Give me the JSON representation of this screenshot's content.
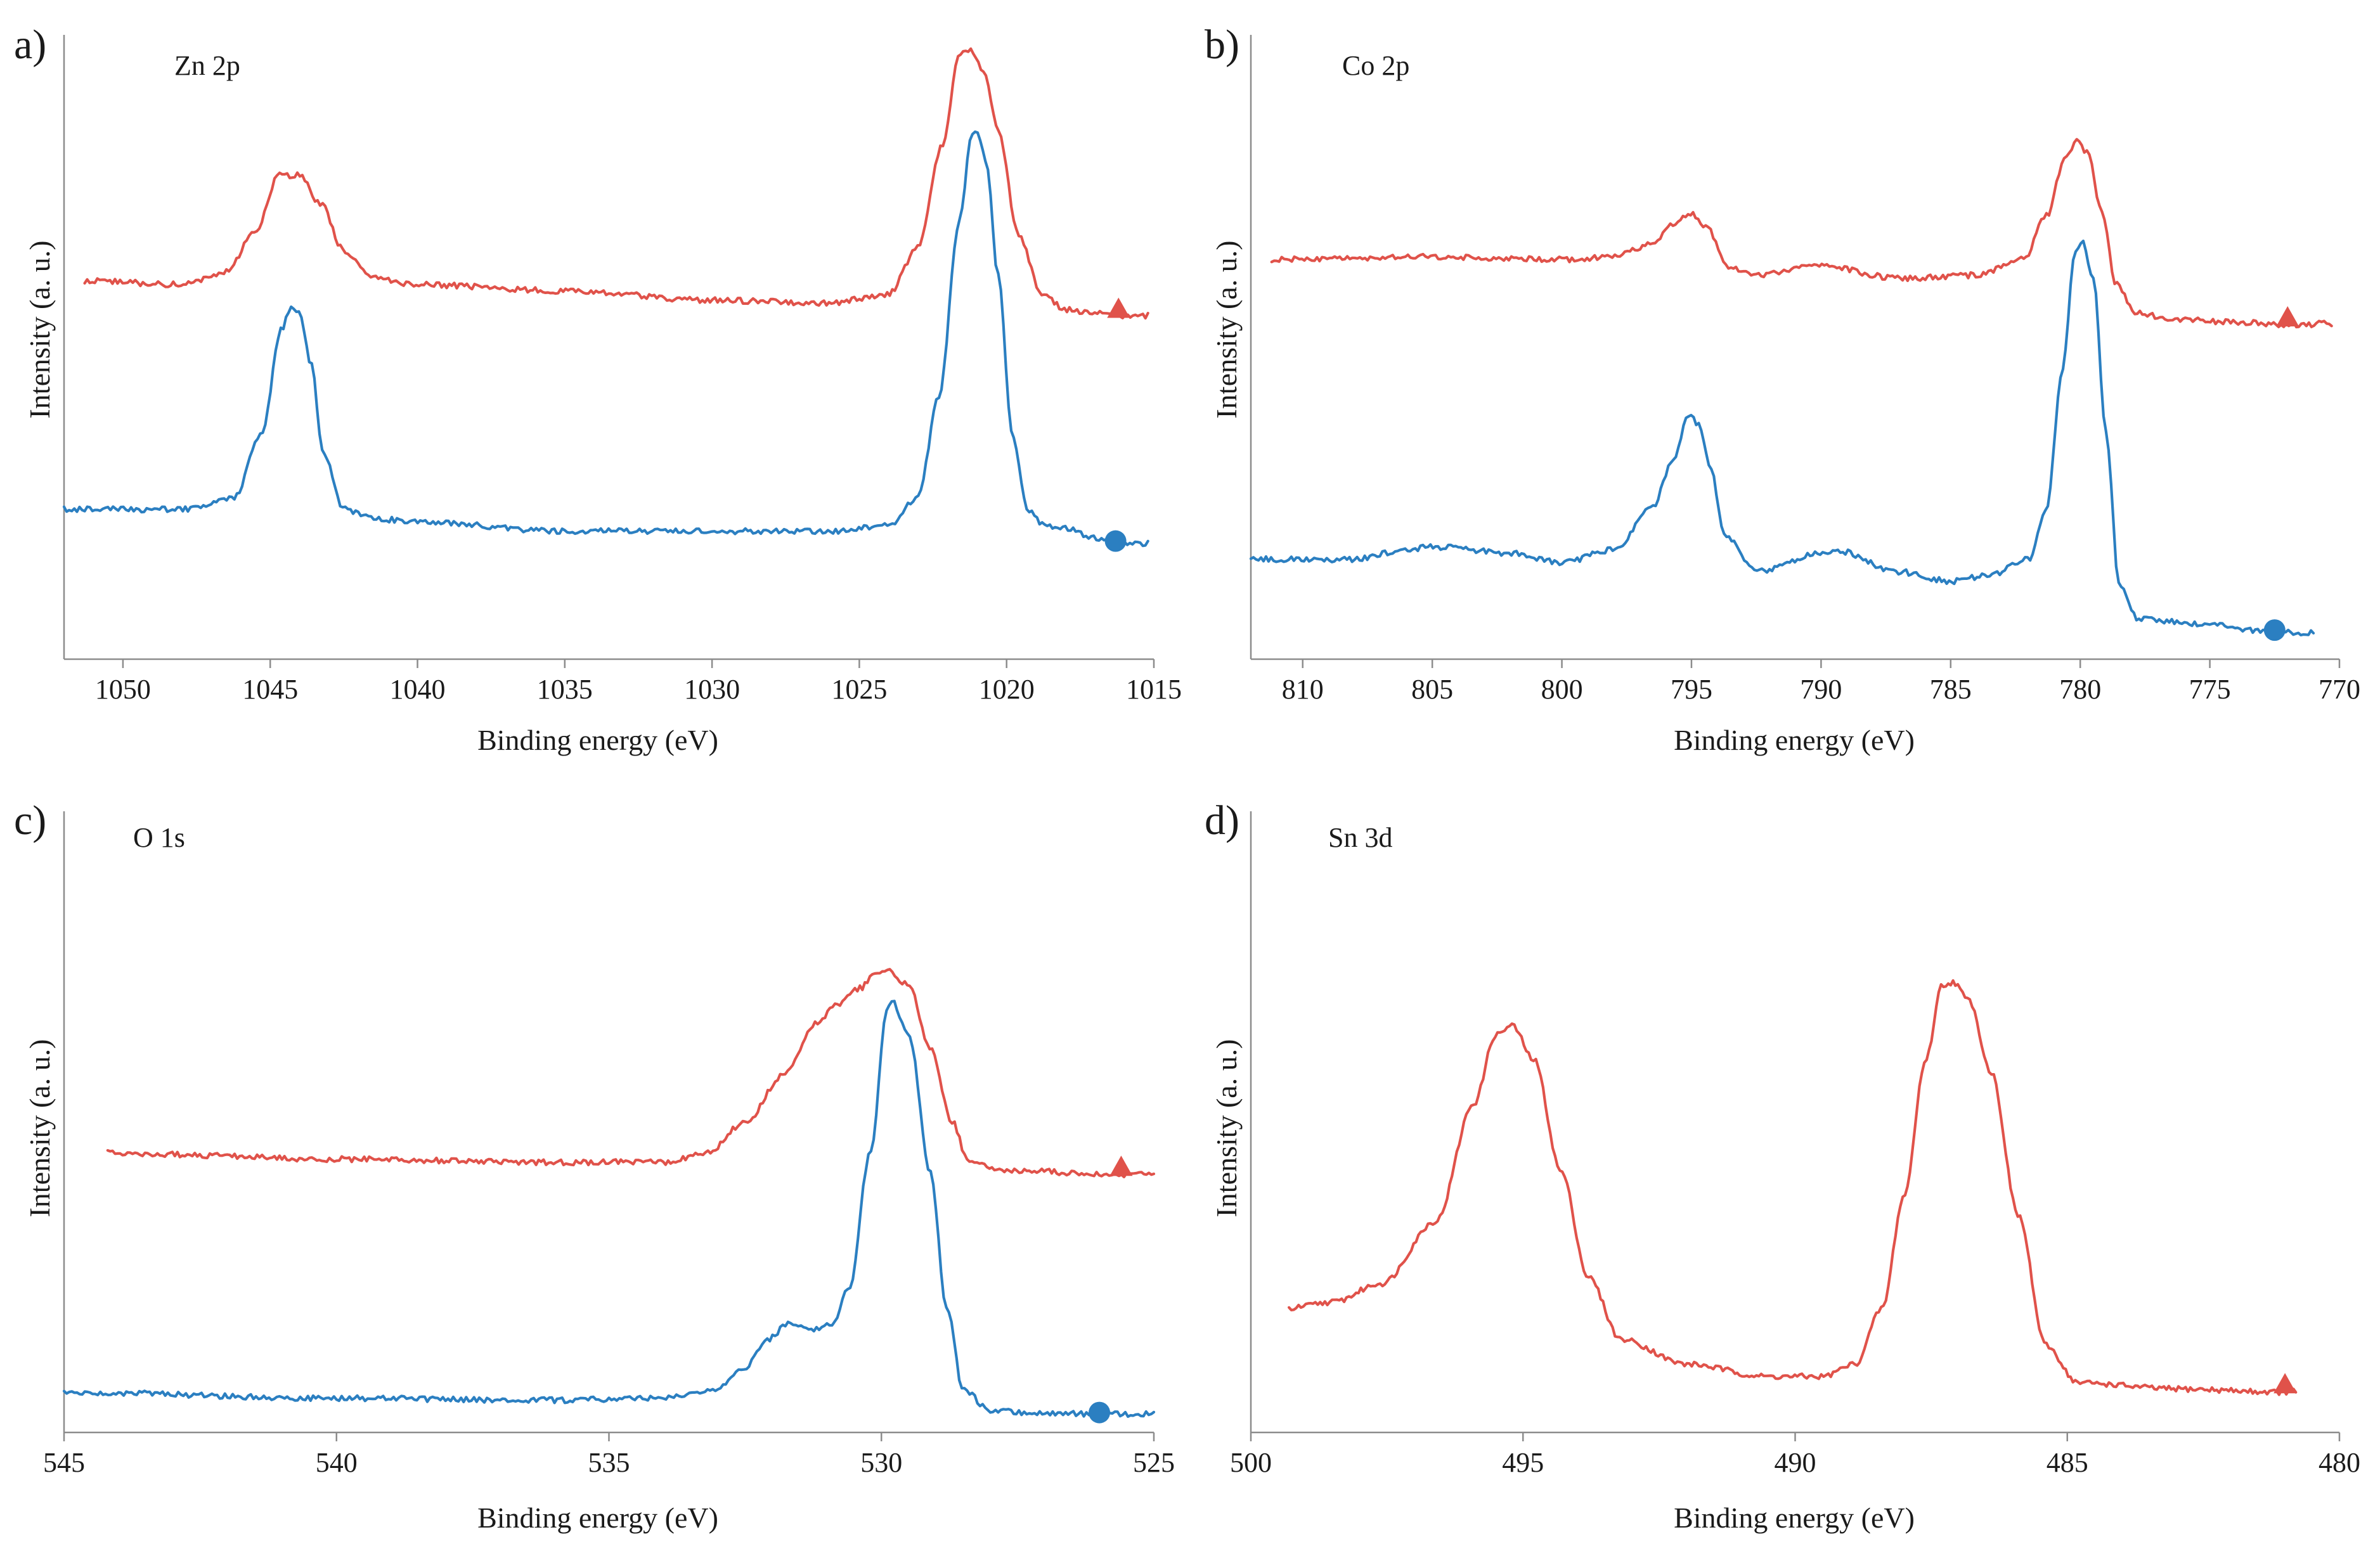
{
  "colors": {
    "red_series": "#e0524a",
    "blue_series": "#2b7fc1"
  },
  "chart_data": [
    {
      "type": "line",
      "panel": "a)",
      "title": "Zn 2p",
      "xlabel": "Binding energy (eV)",
      "ylabel": "Intensity (a. u.)",
      "xlim": [
        1052,
        1015
      ],
      "ylim": [
        0,
        1
      ],
      "xticks": [
        1050,
        1045,
        1040,
        1035,
        1030,
        1025,
        1020,
        1015
      ],
      "series": [
        {
          "name": "red-trace",
          "marker": "triangle",
          "color": "#e0524a",
          "x_range": [
            1051.3,
            1015.2
          ],
          "marker_x": 1016.2,
          "points": [
            [
              1051.3,
              0.606
            ],
            [
              1048,
              0.6
            ],
            [
              1046.5,
              0.62
            ],
            [
              1045.5,
              0.685
            ],
            [
              1044.7,
              0.775
            ],
            [
              1044,
              0.775
            ],
            [
              1043.3,
              0.73
            ],
            [
              1042.5,
              0.655
            ],
            [
              1041.5,
              0.61
            ],
            [
              1040,
              0.6
            ],
            [
              1035,
              0.59
            ],
            [
              1030,
              0.575
            ],
            [
              1026,
              0.57
            ],
            [
              1024,
              0.585
            ],
            [
              1023,
              0.66
            ],
            [
              1022.2,
              0.82
            ],
            [
              1021.6,
              0.97
            ],
            [
              1021.2,
              0.975
            ],
            [
              1020.8,
              0.945
            ],
            [
              1020.3,
              0.85
            ],
            [
              1019.6,
              0.68
            ],
            [
              1018.8,
              0.585
            ],
            [
              1018,
              0.56
            ],
            [
              1017,
              0.555
            ],
            [
              1016,
              0.548
            ],
            [
              1015.2,
              0.55
            ]
          ]
        },
        {
          "name": "blue-trace",
          "marker": "circle",
          "color": "#2b7fc1",
          "x_range": [
            1052,
            1015.2
          ],
          "marker_x": 1016.3,
          "points": [
            [
              1052,
              0.24
            ],
            [
              1048,
              0.24
            ],
            [
              1046.2,
              0.26
            ],
            [
              1045.3,
              0.36
            ],
            [
              1044.6,
              0.53
            ],
            [
              1044.3,
              0.565
            ],
            [
              1044,
              0.555
            ],
            [
              1043.6,
              0.47
            ],
            [
              1043.2,
              0.33
            ],
            [
              1042.5,
              0.24
            ],
            [
              1041.5,
              0.225
            ],
            [
              1040,
              0.22
            ],
            [
              1035,
              0.205
            ],
            [
              1030,
              0.205
            ],
            [
              1026,
              0.205
            ],
            [
              1024,
              0.215
            ],
            [
              1023,
              0.26
            ],
            [
              1022.3,
              0.42
            ],
            [
              1021.6,
              0.7
            ],
            [
              1021.2,
              0.84
            ],
            [
              1021,
              0.845
            ],
            [
              1020.7,
              0.8
            ],
            [
              1020.3,
              0.62
            ],
            [
              1019.8,
              0.36
            ],
            [
              1019.3,
              0.24
            ],
            [
              1018.7,
              0.215
            ],
            [
              1018,
              0.21
            ],
            [
              1017,
              0.195
            ],
            [
              1016,
              0.185
            ],
            [
              1015.2,
              0.186
            ]
          ]
        }
      ]
    },
    {
      "type": "line",
      "panel": "b)",
      "title": "Co 2p",
      "xlabel": "Binding energy (eV)",
      "ylabel": "Intensity (a. u.)",
      "xlim": [
        812,
        770
      ],
      "ylim": [
        0,
        1
      ],
      "xticks": [
        810,
        805,
        800,
        795,
        790,
        785,
        780,
        775,
        770
      ],
      "series": [
        {
          "name": "red-trace",
          "marker": "triangle",
          "color": "#e0524a",
          "x_range": [
            811.2,
            770.3
          ],
          "marker_x": 772,
          "points": [
            [
              811.2,
              0.64
            ],
            [
              805,
              0.645
            ],
            [
              800,
              0.64
            ],
            [
              798,
              0.645
            ],
            [
              796.5,
              0.665
            ],
            [
              795.6,
              0.7
            ],
            [
              795,
              0.715
            ],
            [
              794.4,
              0.69
            ],
            [
              793.6,
              0.63
            ],
            [
              792.5,
              0.615
            ],
            [
              790,
              0.63
            ],
            [
              787,
              0.61
            ],
            [
              784,
              0.615
            ],
            [
              782.2,
              0.64
            ],
            [
              781.3,
              0.71
            ],
            [
              780.6,
              0.8
            ],
            [
              780.1,
              0.83
            ],
            [
              779.7,
              0.81
            ],
            [
              779.2,
              0.72
            ],
            [
              778.6,
              0.6
            ],
            [
              777.9,
              0.555
            ],
            [
              776.5,
              0.545
            ],
            [
              774,
              0.54
            ],
            [
              772,
              0.535
            ],
            [
              770.3,
              0.538
            ]
          ]
        },
        {
          "name": "blue-trace",
          "marker": "circle",
          "color": "#2b7fc1",
          "x_range": [
            812,
            771
          ],
          "marker_x": 772.5,
          "points": [
            [
              812,
              0.16
            ],
            [
              808,
              0.16
            ],
            [
              806,
              0.175
            ],
            [
              805,
              0.18
            ],
            [
              802,
              0.17
            ],
            [
              800,
              0.155
            ],
            [
              798,
              0.175
            ],
            [
              796.5,
              0.245
            ],
            [
              795.7,
              0.32
            ],
            [
              795.1,
              0.39
            ],
            [
              794.7,
              0.375
            ],
            [
              794.3,
              0.31
            ],
            [
              793.7,
              0.2
            ],
            [
              792.5,
              0.14
            ],
            [
              790,
              0.17
            ],
            [
              789.5,
              0.175
            ],
            [
              787,
              0.14
            ],
            [
              785,
              0.125
            ],
            [
              783.5,
              0.135
            ],
            [
              782,
              0.16
            ],
            [
              781.3,
              0.24
            ],
            [
              780.7,
              0.46
            ],
            [
              780.2,
              0.655
            ],
            [
              779.9,
              0.67
            ],
            [
              779.5,
              0.61
            ],
            [
              779,
              0.36
            ],
            [
              778.5,
              0.12
            ],
            [
              777.8,
              0.065
            ],
            [
              775,
              0.055
            ],
            [
              773,
              0.045
            ],
            [
              771,
              0.042
            ]
          ]
        }
      ]
    },
    {
      "type": "line",
      "panel": "c)",
      "title": "O 1s",
      "xlabel": "Binding energy (eV)",
      "ylabel": "Intensity (a. u.)",
      "xlim": [
        545,
        525
      ],
      "ylim": [
        0,
        1
      ],
      "xticks": [
        545,
        540,
        535,
        530,
        525
      ],
      "series": [
        {
          "name": "red-trace",
          "marker": "triangle",
          "color": "#e0524a",
          "x_range": [
            544.2,
            525
          ],
          "marker_x": 525.6,
          "points": [
            [
              544.2,
              0.45
            ],
            [
              540,
              0.44
            ],
            [
              536,
              0.435
            ],
            [
              534,
              0.435
            ],
            [
              533.2,
              0.45
            ],
            [
              532.5,
              0.5
            ],
            [
              531.8,
              0.575
            ],
            [
              531.2,
              0.66
            ],
            [
              530.8,
              0.69
            ],
            [
              530.4,
              0.715
            ],
            [
              530.1,
              0.74
            ],
            [
              529.9,
              0.745
            ],
            [
              529.5,
              0.72
            ],
            [
              529.1,
              0.62
            ],
            [
              528.7,
              0.5
            ],
            [
              528.4,
              0.435
            ],
            [
              527.8,
              0.42
            ],
            [
              527,
              0.42
            ],
            [
              526,
              0.415
            ],
            [
              525,
              0.415
            ]
          ]
        },
        {
          "name": "blue-trace",
          "marker": "circle",
          "color": "#2b7fc1",
          "x_range": [
            545,
            525
          ],
          "marker_x": 526,
          "points": [
            [
              545,
              0.065
            ],
            [
              540,
              0.055
            ],
            [
              536,
              0.052
            ],
            [
              534,
              0.055
            ],
            [
              533,
              0.07
            ],
            [
              532.5,
              0.105
            ],
            [
              532.1,
              0.15
            ],
            [
              531.7,
              0.175
            ],
            [
              531.3,
              0.165
            ],
            [
              530.9,
              0.175
            ],
            [
              530.6,
              0.23
            ],
            [
              530.2,
              0.45
            ],
            [
              529.9,
              0.68
            ],
            [
              529.8,
              0.695
            ],
            [
              529.5,
              0.64
            ],
            [
              529.1,
              0.42
            ],
            [
              528.8,
              0.2
            ],
            [
              528.5,
              0.07
            ],
            [
              528,
              0.035
            ],
            [
              527,
              0.03
            ],
            [
              526,
              0.03
            ],
            [
              525,
              0.03
            ]
          ]
        }
      ]
    },
    {
      "type": "line",
      "panel": "d)",
      "title": "Sn 3d",
      "xlabel": "Binding energy (eV)",
      "ylabel": "Intensity (a. u.)",
      "xlim": [
        500,
        480
      ],
      "ylim": [
        0,
        1
      ],
      "xticks": [
        500,
        495,
        490,
        485,
        480
      ],
      "series": [
        {
          "name": "red-trace",
          "marker": "triangle",
          "color": "#e0524a",
          "x_range": [
            499.3,
            480.8
          ],
          "marker_x": 481,
          "points": [
            [
              499.3,
              0.2
            ],
            [
              498.5,
              0.21
            ],
            [
              497.6,
              0.24
            ],
            [
              496.6,
              0.34
            ],
            [
              495.9,
              0.53
            ],
            [
              495.5,
              0.64
            ],
            [
              495.2,
              0.655
            ],
            [
              494.8,
              0.6
            ],
            [
              494.3,
              0.42
            ],
            [
              493.8,
              0.25
            ],
            [
              493.2,
              0.15
            ],
            [
              492,
              0.11
            ],
            [
              490.5,
              0.09
            ],
            [
              489.5,
              0.09
            ],
            [
              488.9,
              0.11
            ],
            [
              488.4,
              0.2
            ],
            [
              488,
              0.38
            ],
            [
              487.6,
              0.6
            ],
            [
              487.3,
              0.72
            ],
            [
              487.1,
              0.725
            ],
            [
              486.8,
              0.695
            ],
            [
              486.4,
              0.58
            ],
            [
              485.9,
              0.35
            ],
            [
              485.4,
              0.14
            ],
            [
              484.8,
              0.08
            ],
            [
              483,
              0.07
            ],
            [
              481,
              0.065
            ],
            [
              480.8,
              0.066
            ]
          ]
        }
      ]
    }
  ]
}
